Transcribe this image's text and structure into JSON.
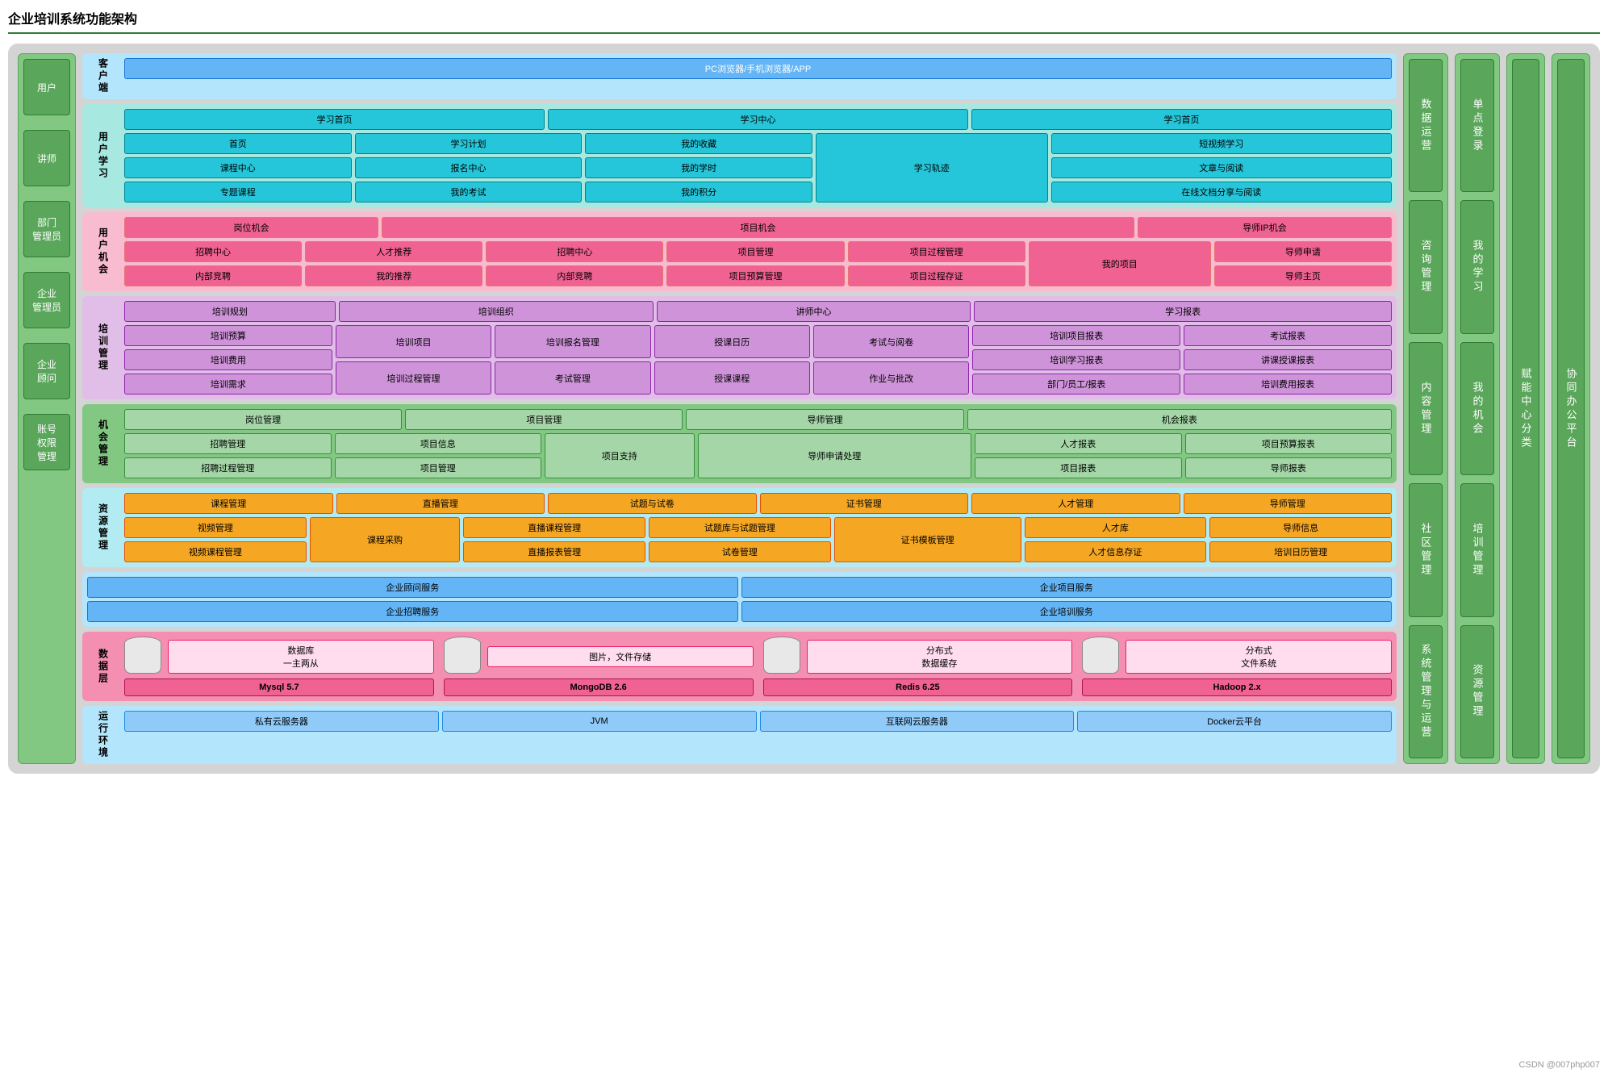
{
  "title": "企业培训系统功能架构",
  "colors": {
    "outer_bg": "#d4d4d4",
    "green_panel": "#82c882",
    "green_btn": "#5aa65a",
    "green_border": "#2e7d32",
    "blue_panel": "#b3e5fc",
    "blue_btn": "#64b5f6",
    "blue_border": "#1976d2",
    "teal_panel": "#a7e8e0",
    "teal_btn": "#26c6da",
    "teal_border": "#00838f",
    "pink_panel": "#f8bbd0",
    "pink_btn": "#f06292",
    "pink_border": "#c2185b",
    "purple_panel": "#e1bee7",
    "purple_btn": "#ce93d8",
    "purple_border": "#8e24aa",
    "orange_panel": "#b2ebf2",
    "orange_btn": "#f5a623",
    "orange_border": "#e65100",
    "lt_blue_btn": "#90caf9",
    "lt_blue_border": "#1e88e5",
    "lime_btn": "#a5d6a7",
    "lime_border": "#388e3c",
    "rose_panel": "#f48fb1",
    "rose_btn": "#f06292",
    "rose_border": "#ad1457"
  },
  "left_roles": [
    "用户",
    "讲师",
    "部门\n管理员",
    "企业\n管理员",
    "企业\n顾问",
    "账号\n权限\n管理"
  ],
  "client": {
    "label": "客户端",
    "text": "PC浏览器/手机浏览器/APP"
  },
  "user_study": {
    "label": "用户学习",
    "row1": [
      "学习首页",
      "学习中心",
      "学习首页"
    ],
    "col1": [
      "首页",
      "课程中心",
      "专题课程"
    ],
    "col2": [
      "学习计划",
      "报名中心",
      "我的考试"
    ],
    "col3": [
      "我的收藏",
      "我的学时",
      "我的积分"
    ],
    "mid": "学习轨迹",
    "col4": [
      "短视频学习",
      "文章与阅读",
      "在线文档分享与阅读"
    ]
  },
  "user_chance": {
    "label": "用户机会",
    "row1": [
      "岗位机会",
      "项目机会",
      "导师IP机会"
    ],
    "c1": [
      "招聘中心",
      "内部竞聘"
    ],
    "c2": [
      "人才推荐",
      "我的推荐"
    ],
    "c3": [
      "招聘中心",
      "内部竞聘"
    ],
    "c4": [
      "项目管理",
      "项目预算管理"
    ],
    "c5": [
      "项目过程管理",
      "项目过程存证"
    ],
    "mid": "我的项目",
    "c6": [
      "导师申请",
      "导师主页"
    ]
  },
  "training": {
    "label": "培训管理",
    "row1": [
      "培训规划",
      "培训组织",
      "讲师中心",
      "学习报表"
    ],
    "c1": [
      "培训预算",
      "培训费用",
      "培训需求"
    ],
    "c2": [
      "培训项目",
      "培训过程管理"
    ],
    "c3": [
      "培训报名管理",
      "考试管理"
    ],
    "c4": [
      "授课日历",
      "授课课程"
    ],
    "c5": [
      "考试与阅卷",
      "作业与批改"
    ],
    "c6": [
      "培训项目报表",
      "培训学习报表",
      "部门/员工/报表"
    ],
    "c7": [
      "考试报表",
      "讲课授课报表",
      "培训费用报表"
    ]
  },
  "chance_mgr": {
    "label": "机会管理",
    "row1": [
      "岗位管理",
      "项目管理",
      "导师管理",
      "机会报表"
    ],
    "c1": [
      "招聘管理",
      "招聘过程管理"
    ],
    "c2": [
      "项目信息",
      "项目管理"
    ],
    "mid": "项目支持",
    "c3": "导师申请处理",
    "c4": [
      "人才报表",
      "项目报表"
    ],
    "c5": [
      "项目预算报表",
      "导师报表"
    ]
  },
  "resource": {
    "label": "资源管理",
    "row1": [
      "课程管理",
      "直播管理",
      "试题与试卷",
      "证书管理",
      "人才管理",
      "导师管理"
    ],
    "c1": [
      "视频管理",
      "视频课程管理"
    ],
    "mid1": "课程采购",
    "c2": [
      "直播课程管理",
      "直播报表管理"
    ],
    "c3": [
      "试题库与试题管理",
      "试卷管理"
    ],
    "mid2": "证书模板管理",
    "c4": [
      "人才库",
      "人才信息存证"
    ],
    "c5": [
      "导师信息",
      "培训日历管理"
    ]
  },
  "services": {
    "r1": [
      "企业顾问服务",
      "企业项目服务"
    ],
    "r2": [
      "企业招聘服务",
      "企业培训服务"
    ]
  },
  "data_layer": {
    "label": "数据层",
    "items": [
      {
        "top": "数据库\n一主两从",
        "db": "Mysql 5.7"
      },
      {
        "top": "图片，文件存储",
        "db": "MongoDB  2.6"
      },
      {
        "top": "分布式\n数据缓存",
        "db": "Redis 6.25"
      },
      {
        "top": "分布式\n文件系统",
        "db": "Hadoop 2.x"
      }
    ]
  },
  "runtime": {
    "label": "运行环境",
    "items": [
      "私有云服务器",
      "JVM",
      "互联网云服务器",
      "Docker云平台"
    ]
  },
  "right1": [
    "数据运营",
    "咨询管理",
    "内容管理",
    "社区管理",
    "系统管理与运营"
  ],
  "right2": [
    "单点登录",
    "我的学习",
    "我的机会",
    "培训管理",
    "资源管理"
  ],
  "right3": "赋能中心分类",
  "right4": "协同办公平台",
  "watermark": "CSDN @007php007"
}
